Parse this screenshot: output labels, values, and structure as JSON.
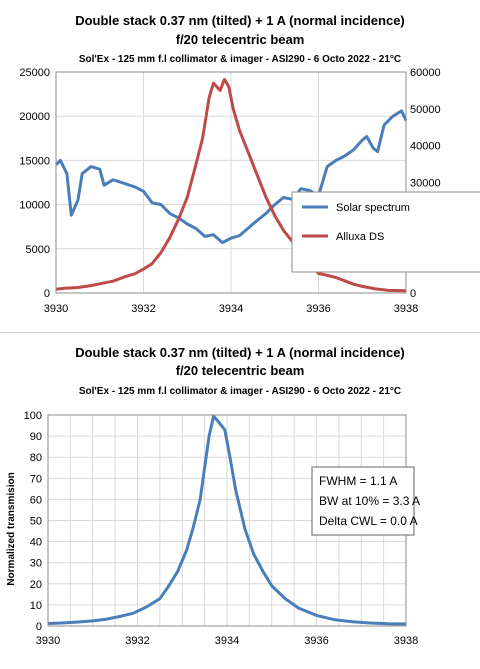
{
  "chart_data": [
    {
      "type": "line",
      "title": [
        "Double stack 0.37 nm (tilted) + 1 A (normal incidence)",
        "f/20 telecentric beam"
      ],
      "subtitle": "Sol'Ex - 125 mm f.l collimator & imager - ASI290 - 6 Octo 2022 - 21°C",
      "xlim": [
        3930,
        3938
      ],
      "x_ticks": [
        "3930",
        "3932",
        "3934",
        "3936",
        "3938"
      ],
      "ylim_left": [
        0,
        25000
      ],
      "y_ticks_left": [
        "0",
        "5000",
        "10000",
        "15000",
        "20000",
        "25000"
      ],
      "ylim_right": [
        0,
        60000
      ],
      "y_ticks_right": [
        "0",
        "10000",
        "20000",
        "30000",
        "40000",
        "50000",
        "60000"
      ],
      "grid": true,
      "legend_position": "right",
      "series": [
        {
          "name": "Solar spectrum",
          "color": "#4a7ebb",
          "axis": "left",
          "x": [
            3930.0,
            3930.1,
            3930.25,
            3930.35,
            3930.5,
            3930.6,
            3930.8,
            3931.0,
            3931.1,
            3931.3,
            3931.5,
            3931.8,
            3932.0,
            3932.2,
            3932.4,
            3932.6,
            3932.8,
            3933.0,
            3933.2,
            3933.4,
            3933.6,
            3933.8,
            3934.0,
            3934.2,
            3934.5,
            3934.8,
            3935.0,
            3935.2,
            3935.4,
            3935.6,
            3935.8,
            3936.0,
            3936.2,
            3936.4,
            3936.6,
            3936.8,
            3937.0,
            3937.1,
            3937.25,
            3937.35,
            3937.5,
            3937.7,
            3937.9,
            3938.0
          ],
          "values": [
            14500,
            15000,
            13500,
            8800,
            10500,
            13500,
            14300,
            14000,
            12200,
            12800,
            12500,
            12000,
            11500,
            10200,
            10000,
            9000,
            8500,
            7800,
            7300,
            6400,
            6600,
            5700,
            6200,
            6500,
            7800,
            9000,
            10000,
            10800,
            10600,
            11800,
            11600,
            11000,
            14300,
            15000,
            15500,
            16200,
            17300,
            17700,
            16400,
            16000,
            19000,
            20000,
            20600,
            19500
          ]
        },
        {
          "name": "Alluxa DS",
          "color": "#be4b48",
          "axis": "right",
          "x": [
            3930.0,
            3930.2,
            3930.5,
            3930.8,
            3931.0,
            3931.3,
            3931.6,
            3931.8,
            3932.0,
            3932.2,
            3932.4,
            3932.6,
            3932.8,
            3933.0,
            3933.2,
            3933.35,
            3933.5,
            3933.6,
            3933.75,
            3933.85,
            3933.95,
            3934.05,
            3934.2,
            3934.4,
            3934.6,
            3934.8,
            3935.0,
            3935.2,
            3935.4,
            3935.6,
            3935.8,
            3936.0,
            3936.2,
            3936.4,
            3936.6,
            3936.8,
            3937.0,
            3937.3,
            3937.6,
            3938.0
          ],
          "values": [
            1000,
            1300,
            1500,
            2000,
            2500,
            3200,
            4500,
            5200,
            6500,
            8000,
            11000,
            15000,
            20000,
            26000,
            35000,
            42000,
            53000,
            57000,
            55000,
            58000,
            56000,
            50000,
            44000,
            38000,
            32000,
            26000,
            21000,
            17000,
            14000,
            11000,
            8000,
            5300,
            4800,
            4200,
            3300,
            2400,
            1800,
            1100,
            700,
            600
          ]
        }
      ]
    },
    {
      "type": "line",
      "title": [
        "Double stack 0.37 nm (tilted) + 1 A (normal incidence)",
        "f/20 telecentric beam"
      ],
      "subtitle": "Sol'Ex - 125 mm f.l collimator & imager - ASI290 - 6 Octo 2022 - 21°C",
      "ylabel": "Normalized transmision",
      "xlim": [
        3930,
        3938
      ],
      "x_ticks": [
        "3930",
        "3932",
        "3934",
        "3936",
        "3938"
      ],
      "ylim": [
        0,
        100
      ],
      "y_ticks": [
        "0",
        "10",
        "20",
        "30",
        "40",
        "50",
        "60",
        "70",
        "80",
        "90",
        "100"
      ],
      "grid": true,
      "annotation": [
        "FWHM = 1.1 A",
        "BW at 10% = 3.3 A",
        "Delta CWL = 0.0 A"
      ],
      "series": [
        {
          "color": "#4a7ebb",
          "x": [
            3930.0,
            3930.3,
            3930.6,
            3931.0,
            3931.3,
            3931.6,
            3931.9,
            3932.2,
            3932.5,
            3932.7,
            3932.9,
            3933.1,
            3933.25,
            3933.4,
            3933.5,
            3933.6,
            3933.7,
            3933.8,
            3933.95,
            3934.05,
            3934.2,
            3934.4,
            3934.6,
            3934.8,
            3935.0,
            3935.3,
            3935.6,
            3936.0,
            3936.4,
            3936.8,
            3937.2,
            3937.6,
            3938.0
          ],
          "values": [
            1.2,
            1.4,
            1.8,
            2.4,
            3.2,
            4.5,
            6.0,
            9.0,
            13.0,
            19.0,
            26.0,
            36.0,
            47.0,
            60.0,
            75.0,
            90.0,
            99.5,
            97.0,
            93.0,
            82.0,
            64.0,
            46.0,
            34.0,
            26.0,
            19.0,
            13.0,
            8.5,
            5.0,
            3.0,
            2.0,
            1.4,
            1.1,
            1.0
          ]
        }
      ]
    }
  ]
}
